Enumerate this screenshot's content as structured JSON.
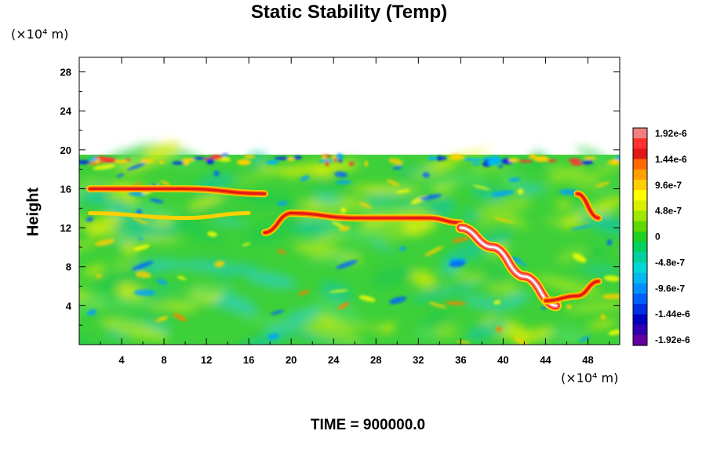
{
  "chart_data": {
    "type": "heatmap",
    "title": "Static Stability (Temp)",
    "xlabel": "",
    "ylabel": "Height",
    "x_unit": "(×10⁴ m)",
    "y_unit": "(×10⁴ m)",
    "xlim": [
      0,
      51
    ],
    "ylim": [
      0,
      29.5
    ],
    "x_ticks": [
      4,
      8,
      12,
      16,
      20,
      24,
      28,
      32,
      36,
      40,
      44,
      48
    ],
    "y_ticks": [
      4,
      8,
      12,
      16,
      20,
      24,
      28
    ],
    "data_top_height": 19.5,
    "colorbar": {
      "labels": [
        "1.92e-6",
        "1.44e-6",
        "9.6e-7",
        "4.8e-7",
        "0",
        "-4.8e-7",
        "-9.6e-7",
        "-1.44e-6",
        "-1.92e-6"
      ],
      "values": [
        1.92e-06,
        1.44e-06,
        9.6e-07,
        4.8e-07,
        0,
        -4.8e-07,
        -9.6e-07,
        -1.44e-06,
        -1.92e-06
      ],
      "colors": [
        "#f08080",
        "#ff3030",
        "#e01818",
        "#ff6a00",
        "#ffa000",
        "#ffd000",
        "#ffff00",
        "#d8f000",
        "#a0e800",
        "#60d800",
        "#20d020",
        "#00d060",
        "#00d0a0",
        "#00d8d8",
        "#00b8f0",
        "#0090ff",
        "#0060ff",
        "#0030e0",
        "#0000c0",
        "#3000b0",
        "#6000a0"
      ]
    },
    "features": [
      {
        "type": "band",
        "x": [
          17.5,
          20,
          26,
          33,
          36
        ],
        "y": [
          11.5,
          13.5,
          13.0,
          13.0,
          12.5
        ],
        "level": "high"
      },
      {
        "type": "band",
        "x": [
          36,
          39,
          42,
          45
        ],
        "y": [
          12.0,
          10.0,
          7.0,
          4.0
        ],
        "level": "very-high"
      },
      {
        "type": "band",
        "x": [
          1,
          10,
          17.5
        ],
        "y": [
          16.0,
          16.0,
          15.5
        ],
        "level": "high"
      },
      {
        "type": "band",
        "x": [
          1,
          10,
          16
        ],
        "y": [
          13.5,
          13.0,
          13.5
        ],
        "level": "moderate"
      },
      {
        "type": "band",
        "x": [
          44,
          47,
          49
        ],
        "y": [
          4.5,
          5.0,
          6.5
        ],
        "level": "high"
      },
      {
        "type": "band",
        "x": [
          47,
          49
        ],
        "y": [
          15.5,
          13.0
        ],
        "level": "high"
      }
    ]
  },
  "footer": {
    "time_label": "TIME = 900000.0"
  }
}
